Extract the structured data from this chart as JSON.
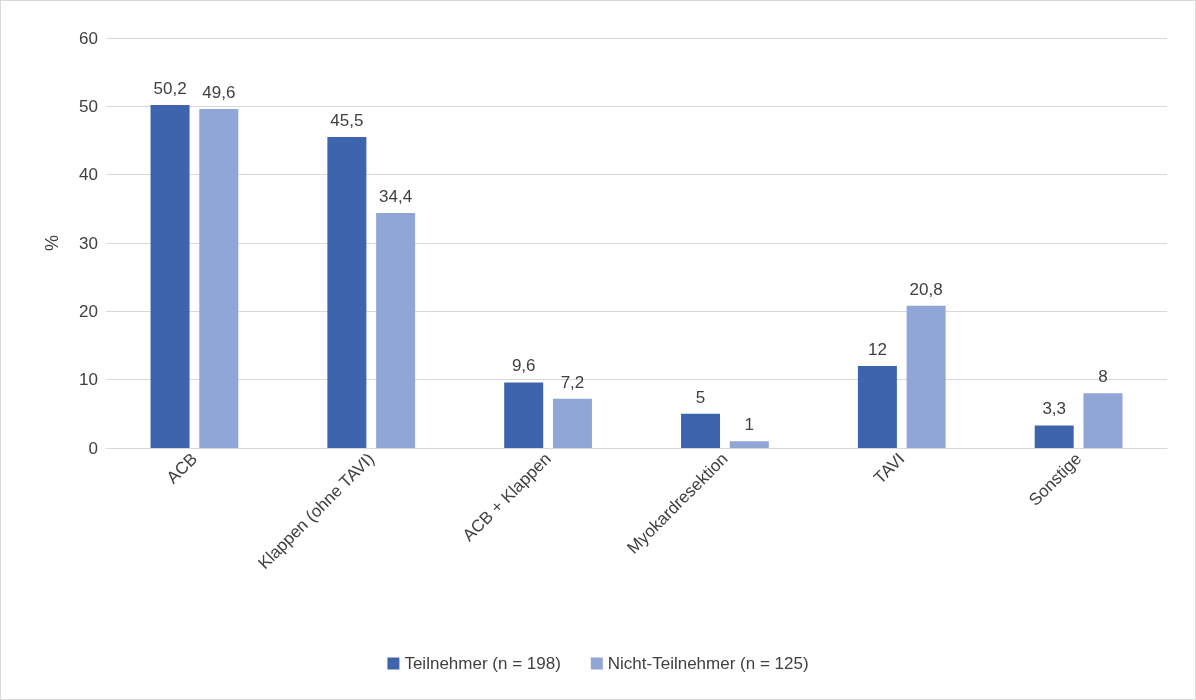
{
  "chart_data": {
    "type": "bar",
    "ylabel": "%",
    "categories": [
      "ACB",
      "Klappen (ohne TAVI)",
      "ACB + Klappen",
      "Myokardresektion",
      "TAVI",
      "Sonstige"
    ],
    "series": [
      {
        "name": "Teilnehmer (n = 198)",
        "color": "#3d64ad",
        "values": [
          50.2,
          45.5,
          9.6,
          5,
          12,
          3.3
        ],
        "value_labels": [
          "50,2",
          "45,5",
          "9,6",
          "5",
          "12",
          "3,3"
        ]
      },
      {
        "name": "Nicht-Teilnehmer (n = 125)",
        "color": "#8fa6d6",
        "values": [
          49.6,
          34.4,
          7.2,
          1,
          20.8,
          8
        ],
        "value_labels": [
          "49,6",
          "34,4",
          "7,2",
          "1",
          "20,8",
          "8"
        ]
      }
    ],
    "ylim": [
      0,
      60
    ],
    "yticks": [
      0,
      10,
      20,
      30,
      40,
      50,
      60
    ],
    "grid": "y",
    "legend": "bottom"
  }
}
